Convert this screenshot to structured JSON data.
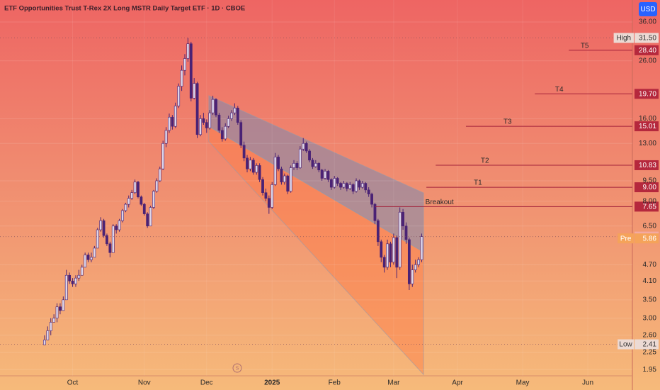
{
  "chart_data": {
    "type": "candlestick",
    "title": "ETF Opportunities Trust T-Rex 2X Long MSTR Daily Target ETF · 1D · CBOE",
    "currency": "USD",
    "log_scale": true,
    "grid": true,
    "up_color": "#ddd6ea",
    "down_color": "#4a2275",
    "level_color": "#a3223b",
    "ylim": [
      1.85,
      43.3
    ],
    "yticks": [
      {
        "value": 36,
        "label": "36.00"
      },
      {
        "value": 26,
        "label": "26.00"
      },
      {
        "value": 16,
        "label": "16.00"
      },
      {
        "value": 13,
        "label": "13.00"
      },
      {
        "value": 9.5,
        "label": "9.50"
      },
      {
        "value": 8,
        "label": "8.00"
      },
      {
        "value": 6.5,
        "label": "6.50"
      },
      {
        "value": 4.7,
        "label": "4.70"
      },
      {
        "value": 4.1,
        "label": "4.10"
      },
      {
        "value": 3.5,
        "label": "3.50"
      },
      {
        "value": 3,
        "label": "3.00"
      },
      {
        "value": 2.6,
        "label": "2.60"
      },
      {
        "value": 2.25,
        "label": "2.25"
      },
      {
        "value": 1.95,
        "label": "1.95"
      }
    ],
    "xlim": [
      -14.3,
      188.6
    ],
    "xticks": [
      {
        "value": 9,
        "label": "Oct"
      },
      {
        "value": 32,
        "label": "Nov"
      },
      {
        "value": 52,
        "label": "Dec"
      },
      {
        "value": 73,
        "label": "2025"
      },
      {
        "value": 93,
        "label": "Feb"
      },
      {
        "value": 112,
        "label": "Mar"
      },
      {
        "value": 132.5,
        "label": "Apr"
      },
      {
        "value": 153.4,
        "label": "May"
      },
      {
        "value": 174.3,
        "label": "Jun"
      }
    ],
    "ohlc": [
      [
        2.4,
        2.6,
        2.41,
        2.5
      ],
      [
        2.5,
        2.8,
        2.5,
        2.7
      ],
      [
        2.7,
        3.0,
        2.6,
        2.9
      ],
      [
        2.9,
        3.1,
        2.9,
        3.0
      ],
      [
        3.0,
        3.4,
        2.9,
        3.3
      ],
      [
        3.3,
        3.4,
        3.1,
        3.2
      ],
      [
        3.2,
        3.6,
        3.2,
        3.5
      ],
      [
        3.5,
        4.5,
        3.5,
        4.3
      ],
      [
        4.3,
        4.4,
        4.0,
        4.1
      ],
      [
        4.1,
        4.2,
        3.9,
        4.0
      ],
      [
        4.0,
        4.3,
        3.9,
        4.2
      ],
      [
        4.2,
        4.5,
        4.1,
        4.3
      ],
      [
        4.3,
        4.7,
        4.3,
        4.6
      ],
      [
        4.6,
        5.2,
        4.6,
        5.1
      ],
      [
        5.1,
        5.2,
        4.8,
        4.9
      ],
      [
        4.9,
        5.2,
        4.8,
        5.0
      ],
      [
        5.0,
        5.5,
        5.0,
        5.4
      ],
      [
        5.4,
        6.4,
        5.4,
        6.3
      ],
      [
        6.3,
        7.0,
        6.2,
        6.8
      ],
      [
        6.8,
        6.9,
        5.9,
        6.0
      ],
      [
        6.0,
        6.1,
        5.5,
        5.6
      ],
      [
        5.6,
        5.7,
        5.0,
        5.2
      ],
      [
        5.2,
        6.6,
        5.2,
        6.5
      ],
      [
        6.5,
        6.6,
        6.1,
        6.3
      ],
      [
        6.3,
        6.9,
        6.2,
        6.8
      ],
      [
        6.8,
        7.5,
        6.7,
        7.4
      ],
      [
        7.4,
        7.9,
        7.3,
        7.8
      ],
      [
        7.8,
        8.4,
        7.6,
        8.2
      ],
      [
        8.2,
        8.8,
        8.1,
        8.6
      ],
      [
        8.6,
        9.6,
        8.5,
        9.4
      ],
      [
        9.4,
        9.5,
        8.2,
        8.3
      ],
      [
        8.3,
        8.4,
        7.7,
        7.8
      ],
      [
        7.8,
        7.9,
        7.1,
        7.2
      ],
      [
        7.2,
        7.3,
        6.4,
        6.5
      ],
      [
        6.5,
        7.7,
        6.5,
        7.6
      ],
      [
        7.6,
        8.8,
        7.5,
        8.7
      ],
      [
        8.7,
        9.7,
        8.6,
        9.5
      ],
      [
        9.5,
        10.7,
        9.4,
        10.5
      ],
      [
        10.5,
        13.3,
        10.4,
        13.0
      ],
      [
        13.0,
        14.9,
        12.6,
        14.5
      ],
      [
        14.5,
        16.7,
        14.2,
        16.2
      ],
      [
        16.2,
        16.5,
        14.6,
        15.0
      ],
      [
        15.0,
        18.3,
        14.8,
        17.8
      ],
      [
        17.8,
        21.5,
        17.5,
        21.0
      ],
      [
        21.0,
        25.0,
        20.2,
        24.0
      ],
      [
        24.0,
        27.5,
        23.0,
        26.5
      ],
      [
        26.5,
        31.5,
        25.8,
        30.0
      ],
      [
        30.0,
        30.5,
        18.5,
        19.0
      ],
      [
        19.0,
        22.5,
        18.8,
        21.5
      ],
      [
        21.5,
        21.8,
        13.6,
        14.0
      ],
      [
        14.0,
        16.5,
        13.8,
        16.0
      ],
      [
        16.0,
        16.8,
        15.2,
        15.5
      ],
      [
        15.5,
        15.9,
        14.2,
        14.8
      ],
      [
        14.8,
        17.2,
        14.6,
        16.8
      ],
      [
        16.8,
        19.4,
        16.5,
        18.8
      ],
      [
        18.8,
        19.0,
        16.2,
        16.5
      ],
      [
        16.5,
        16.8,
        14.2,
        14.5
      ],
      [
        14.5,
        14.9,
        13.2,
        13.5
      ],
      [
        13.5,
        15.4,
        13.3,
        15.0
      ],
      [
        15.0,
        16.4,
        14.8,
        16.0
      ],
      [
        16.0,
        17.2,
        15.7,
        16.8
      ],
      [
        16.8,
        18.2,
        16.5,
        17.5
      ],
      [
        17.5,
        17.8,
        15.2,
        15.5
      ],
      [
        15.5,
        15.8,
        12.5,
        12.8
      ],
      [
        12.8,
        13.2,
        11.2,
        11.5
      ],
      [
        11.5,
        11.8,
        10.2,
        10.5
      ],
      [
        10.5,
        11.6,
        10.3,
        11.3
      ],
      [
        11.3,
        11.5,
        10.0,
        10.2
      ],
      [
        10.2,
        11.0,
        10.0,
        10.8
      ],
      [
        10.8,
        11.0,
        9.4,
        9.6
      ],
      [
        9.6,
        9.8,
        8.4,
        8.6
      ],
      [
        8.6,
        8.9,
        8.0,
        8.2
      ],
      [
        8.2,
        8.4,
        7.2,
        7.6
      ],
      [
        7.6,
        9.4,
        7.5,
        9.2
      ],
      [
        9.2,
        12.0,
        9.1,
        11.6
      ],
      [
        11.6,
        11.8,
        10.3,
        10.5
      ],
      [
        10.5,
        10.7,
        9.2,
        9.4
      ],
      [
        9.4,
        10.1,
        9.2,
        9.9
      ],
      [
        9.9,
        10.0,
        8.5,
        8.7
      ],
      [
        8.7,
        10.8,
        8.6,
        10.6
      ],
      [
        10.6,
        11.3,
        10.4,
        11.0
      ],
      [
        11.0,
        11.2,
        10.4,
        10.6
      ],
      [
        10.6,
        12.7,
        10.5,
        12.4
      ],
      [
        12.4,
        13.6,
        12.2,
        13.0
      ],
      [
        13.0,
        13.2,
        12.0,
        12.2
      ],
      [
        12.2,
        12.4,
        11.1,
        11.3
      ],
      [
        11.3,
        11.5,
        10.5,
        10.7
      ],
      [
        10.7,
        11.3,
        10.6,
        11.0
      ],
      [
        11.0,
        11.1,
        10.2,
        10.4
      ],
      [
        10.4,
        10.5,
        9.5,
        9.7
      ],
      [
        9.7,
        10.5,
        9.6,
        10.3
      ],
      [
        10.3,
        10.4,
        9.4,
        9.6
      ],
      [
        9.6,
        9.7,
        8.8,
        9.0
      ],
      [
        9.0,
        9.9,
        8.9,
        9.7
      ],
      [
        9.7,
        9.8,
        9.1,
        9.3
      ],
      [
        9.3,
        9.4,
        8.8,
        9.0
      ],
      [
        9.0,
        9.5,
        8.9,
        9.3
      ],
      [
        9.3,
        9.4,
        8.7,
        8.9
      ],
      [
        8.9,
        9.4,
        8.8,
        9.2
      ],
      [
        9.2,
        9.3,
        8.5,
        8.7
      ],
      [
        8.7,
        9.7,
        8.6,
        9.5
      ],
      [
        9.5,
        9.6,
        8.8,
        9.0
      ],
      [
        9.0,
        9.5,
        8.9,
        9.3
      ],
      [
        9.3,
        9.4,
        8.6,
        8.8
      ],
      [
        8.8,
        9.0,
        8.3,
        8.5
      ],
      [
        8.5,
        8.6,
        7.6,
        7.8
      ],
      [
        7.8,
        7.9,
        6.6,
        6.8
      ],
      [
        6.8,
        6.9,
        5.5,
        5.7
      ],
      [
        5.7,
        5.8,
        4.8,
        5.0
      ],
      [
        5.0,
        5.1,
        4.4,
        4.6
      ],
      [
        4.6,
        5.8,
        4.5,
        5.6
      ],
      [
        5.6,
        5.7,
        4.6,
        4.8
      ],
      [
        4.8,
        6.1,
        4.7,
        5.9
      ],
      [
        5.9,
        6.0,
        4.2,
        4.6
      ],
      [
        4.6,
        7.6,
        4.5,
        7.3
      ],
      [
        7.3,
        7.5,
        6.3,
        6.5
      ],
      [
        6.5,
        6.7,
        5.6,
        5.8
      ],
      [
        5.8,
        5.9,
        3.8,
        4.0
      ],
      [
        4.0,
        4.7,
        3.9,
        4.5
      ],
      [
        4.5,
        4.9,
        4.4,
        4.7
      ],
      [
        4.7,
        5.0,
        4.6,
        4.9
      ],
      [
        4.9,
        6.1,
        4.8,
        5.95
      ]
    ],
    "channel": [
      [
        52.7,
        19.4
      ],
      [
        121.6,
        8.58
      ],
      [
        121.6,
        5.23
      ],
      [
        52.7,
        15.0
      ]
    ],
    "wedge": [
      [
        52.7,
        15.0
      ],
      [
        121.6,
        5.23
      ],
      [
        121.6,
        1.87
      ],
      [
        52.7,
        13.2
      ]
    ],
    "levels": [
      {
        "name": "High",
        "value": 31.5,
        "value_label": "31.50",
        "line": "dotted",
        "tag": "#ecdad4",
        "tag_text": "#333333"
      },
      {
        "name": "T5",
        "value": 28.4,
        "value_label": "28.40",
        "line": "solid",
        "start": 168.2,
        "tag": "#b5283d",
        "tag_text": "#ffffff"
      },
      {
        "name": "T4",
        "value": 19.7,
        "value_label": "19.70",
        "line": "solid",
        "start": 157.3,
        "tag": "#b5283d",
        "tag_text": "#ffffff"
      },
      {
        "name": "T3",
        "value": 15.01,
        "value_label": "15.01",
        "line": "solid",
        "start": 135.2,
        "tag": "#b5283d",
        "tag_text": "#ffffff"
      },
      {
        "name": "T2",
        "value": 10.83,
        "value_label": "10.83",
        "line": "solid",
        "start": 125.5,
        "tag": "#b5283d",
        "tag_text": "#ffffff"
      },
      {
        "name": "T1",
        "value": 9.0,
        "value_label": "9.00",
        "line": "solid",
        "start": 122.5,
        "tag": "#b5283d",
        "tag_text": "#ffffff"
      },
      {
        "name": "Breakout",
        "value": 7.65,
        "value_label": "7.65",
        "line": "solid",
        "start": 106.1,
        "tag": "#b5283d",
        "tag_text": "#ffffff"
      },
      {
        "value": 5.95,
        "value_label": "5.95",
        "line": "dotted",
        "tag": "#f3aaa2",
        "tag_text": "#ffffff"
      },
      {
        "name": "Pre",
        "value": 5.86,
        "value_label": "5.86",
        "line": "none",
        "tag": "#f5a35a",
        "tag_text": "#ffffff"
      },
      {
        "name": "Low",
        "value": 2.41,
        "value_label": "2.41",
        "line": "dotted",
        "tag": "#ecdad4",
        "tag_text": "#333333"
      }
    ]
  }
}
